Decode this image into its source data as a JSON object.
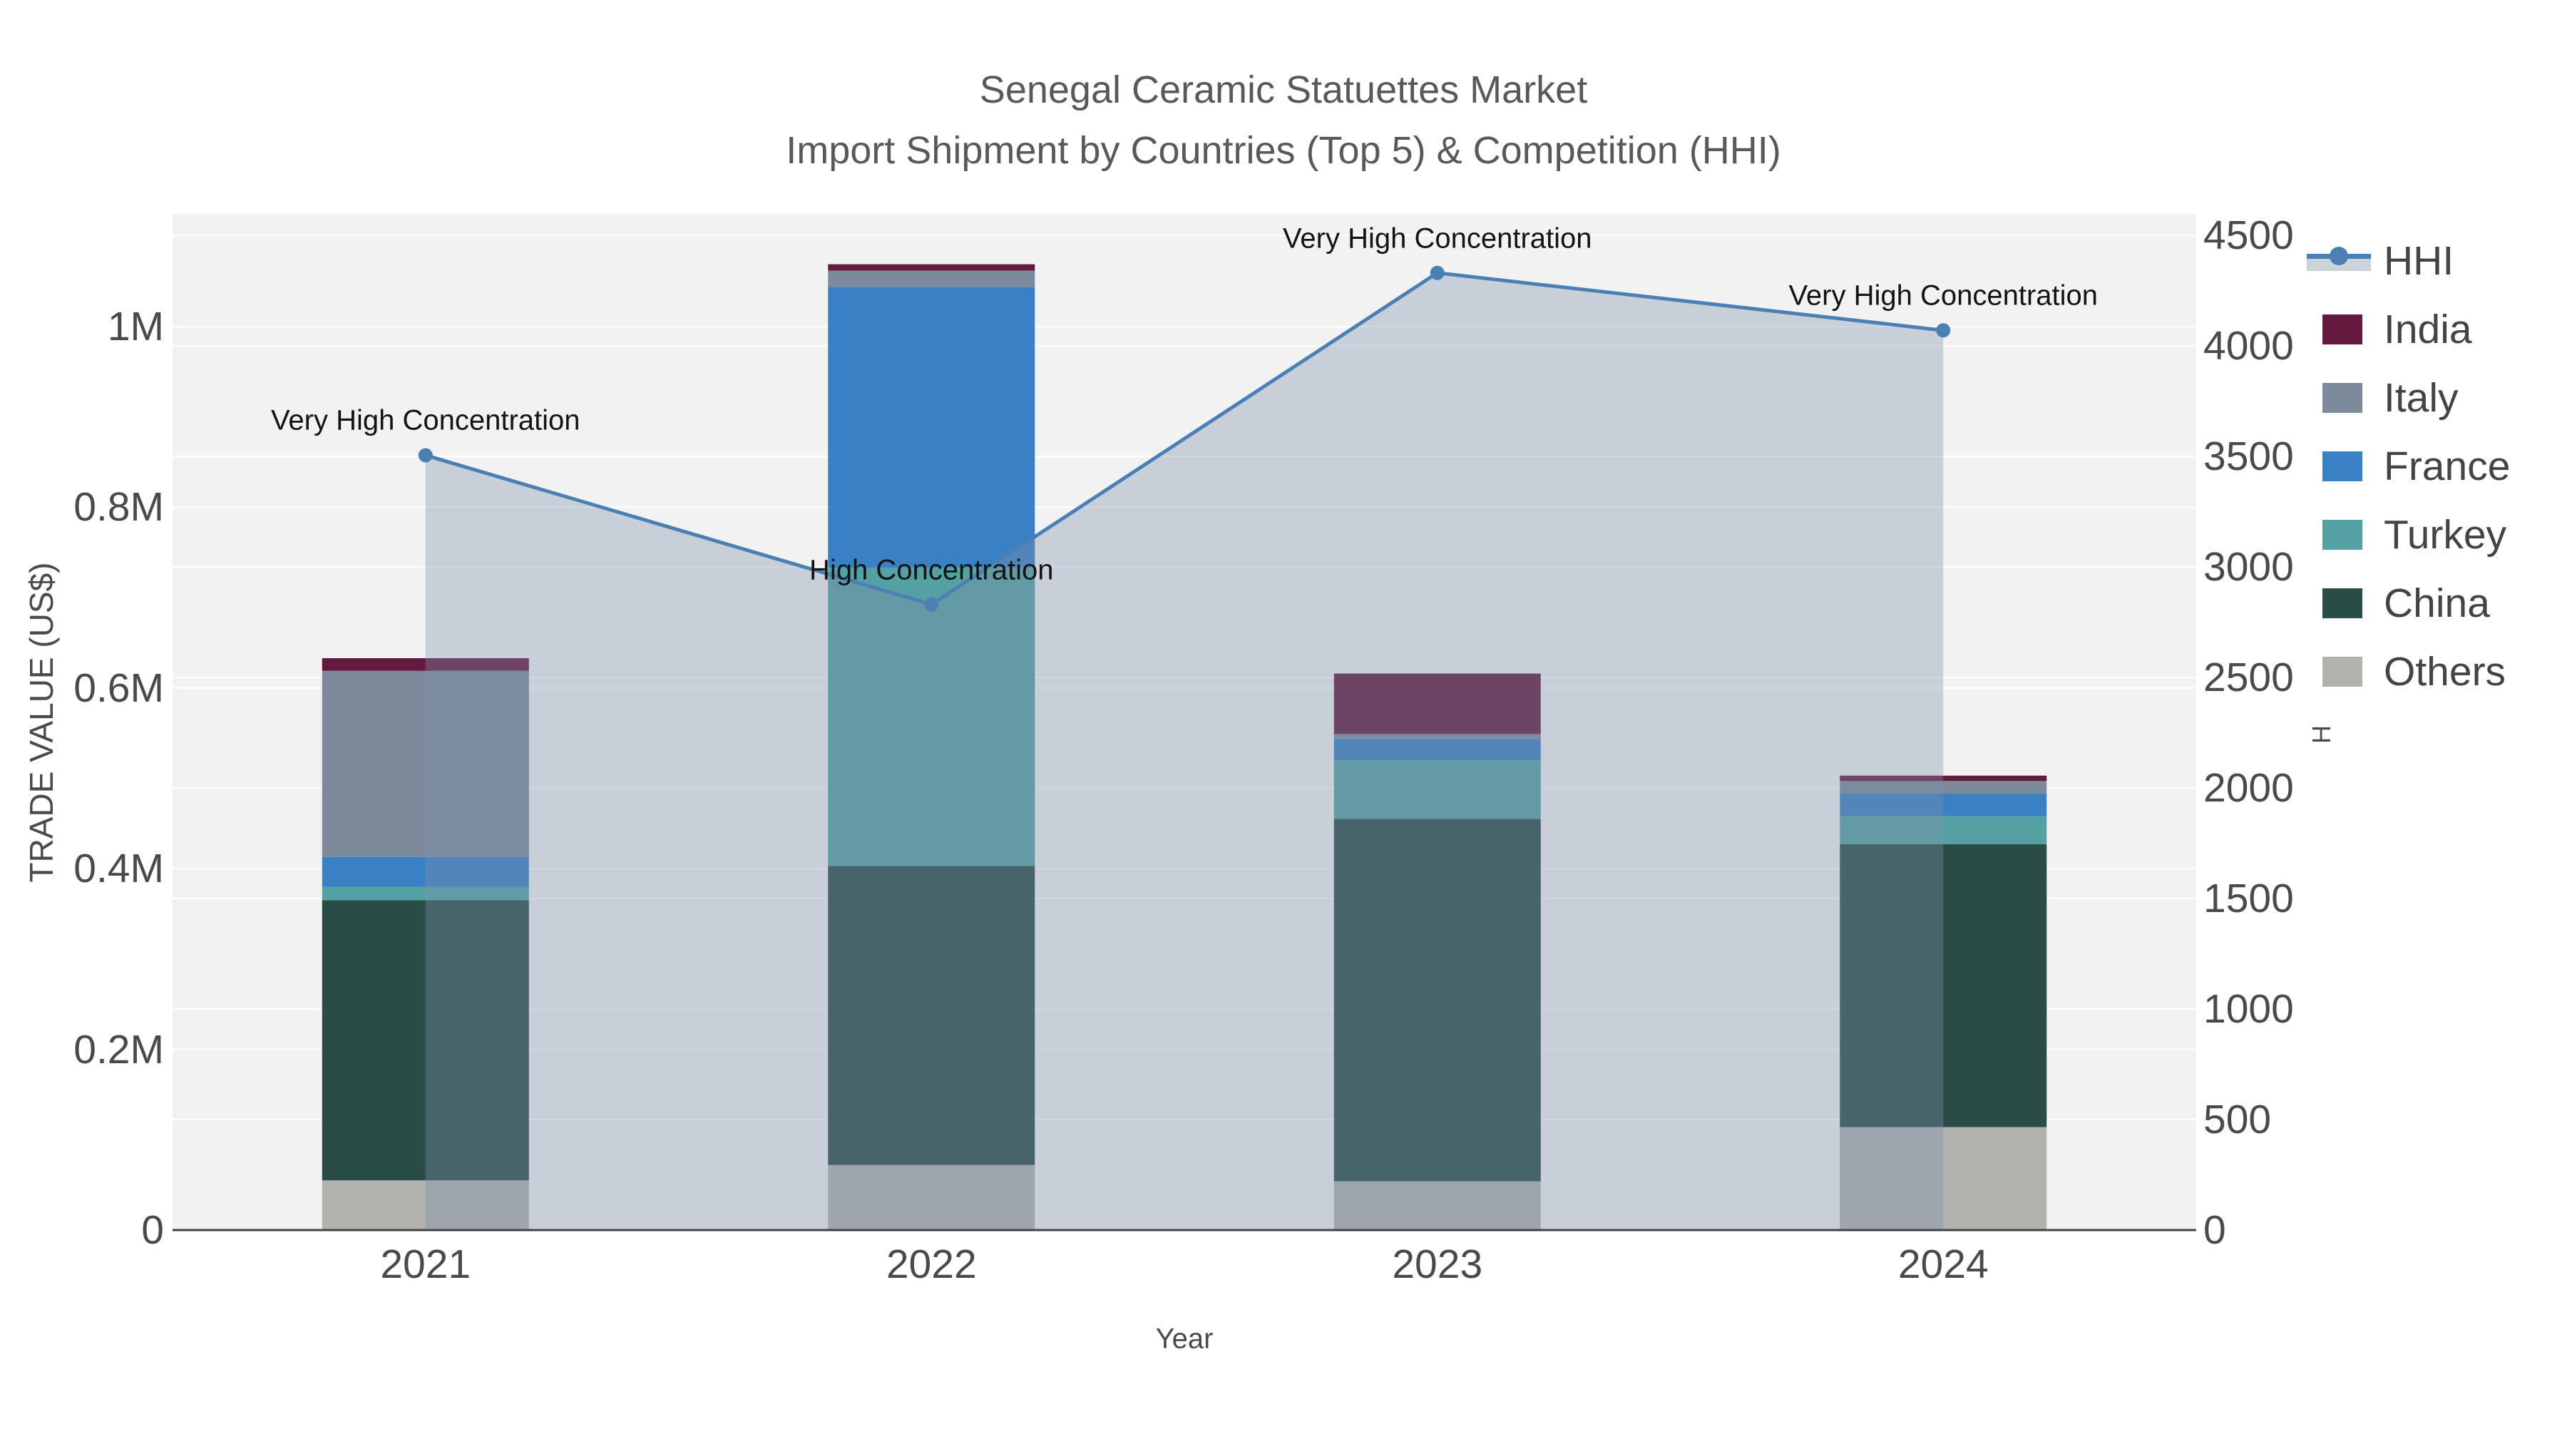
{
  "title": {
    "line1": "Senegal Ceramic Statuettes Market",
    "line2": "Import Shipment by Countries (Top 5) & Competition (HHI)"
  },
  "axes": {
    "x": {
      "title": "Year",
      "categories": [
        "2021",
        "2022",
        "2023",
        "2024"
      ]
    },
    "y_left": {
      "title": "TRADE VALUE (US$)",
      "ticks": [
        {
          "label": "0",
          "value": 0
        },
        {
          "label": "0.2M",
          "value": 200000
        },
        {
          "label": "0.4M",
          "value": 400000
        },
        {
          "label": "0.6M",
          "value": 600000
        },
        {
          "label": "0.8M",
          "value": 800000
        },
        {
          "label": "1M",
          "value": 1000000
        }
      ]
    },
    "y_right": {
      "title": "HHI",
      "ticks": [
        {
          "label": "0",
          "value": 0
        },
        {
          "label": "500",
          "value": 500
        },
        {
          "label": "1000",
          "value": 1000
        },
        {
          "label": "1500",
          "value": 1500
        },
        {
          "label": "2000",
          "value": 2000
        },
        {
          "label": "2500",
          "value": 2500
        },
        {
          "label": "3000",
          "value": 3000
        },
        {
          "label": "3500",
          "value": 3500
        },
        {
          "label": "4000",
          "value": 4000
        },
        {
          "label": "4500",
          "value": 4500
        }
      ]
    }
  },
  "chart_data": {
    "type": "bar+line",
    "title": "Senegal Ceramic Statuettes Market — Import Shipment by Countries (Top 5) & Competition (HHI)",
    "categories": [
      "2021",
      "2022",
      "2023",
      "2024"
    ],
    "bar_value_unit": "US$",
    "stack_order_bottom_to_top": [
      "Others",
      "China",
      "Turkey",
      "France",
      "Italy",
      "India"
    ],
    "series": [
      {
        "name": "Others",
        "color": "#b1b1ae",
        "values": [
          55000,
          72000,
          54000,
          114000
        ]
      },
      {
        "name": "China",
        "color": "#2a4c47",
        "values": [
          310000,
          331000,
          401000,
          313000
        ]
      },
      {
        "name": "Turkey",
        "color": "#55a0a3",
        "values": [
          15000,
          330000,
          65000,
          31000
        ]
      },
      {
        "name": "France",
        "color": "#3a80c4",
        "values": [
          33000,
          311000,
          24000,
          25000
        ]
      },
      {
        "name": "Italy",
        "color": "#7c8a9b",
        "values": [
          206000,
          18000,
          5000,
          14000
        ]
      },
      {
        "name": "India",
        "color": "#64193e",
        "values": [
          14000,
          7000,
          67000,
          6000
        ]
      }
    ],
    "bar_totals": [
      633000,
      1069000,
      616000,
      503000
    ],
    "line_series": {
      "name": "HHI",
      "axis": "right",
      "values": [
        3505,
        2830,
        4330,
        4070
      ],
      "marker": "circle",
      "area_fill": true
    },
    "annotations": [
      {
        "x_index": 0,
        "text": "Very High Concentration"
      },
      {
        "x_index": 1,
        "text": "High Concentration"
      },
      {
        "x_index": 2,
        "text": "Very High Concentration"
      },
      {
        "x_index": 3,
        "text": "Very High Concentration"
      }
    ],
    "y_left_range": [
      0,
      1125000
    ],
    "y_right_range": [
      0,
      4600
    ],
    "grid": true,
    "legend_position": "right"
  },
  "legend": {
    "items": [
      {
        "label": "HHI",
        "type": "line",
        "color": "#4a80b4"
      },
      {
        "label": "India",
        "type": "swatch",
        "color": "#64193e"
      },
      {
        "label": "Italy",
        "type": "swatch",
        "color": "#7c8a9b"
      },
      {
        "label": "France",
        "type": "swatch",
        "color": "#3a80c4"
      },
      {
        "label": "Turkey",
        "type": "swatch",
        "color": "#55a0a3"
      },
      {
        "label": "China",
        "type": "swatch",
        "color": "#2a4c47"
      },
      {
        "label": "Others",
        "type": "swatch",
        "color": "#b1b1ae"
      }
    ]
  },
  "colors": {
    "plot_background": "#f2f2f2",
    "gridline": "#ffffff",
    "axis_line": "#444444",
    "hhi_line": "#4a80b4",
    "hhi_fill": "rgba(125,143,170,0.36)",
    "hhi_band_solid": "#cdd3db",
    "tick_text": "#4a4a4a",
    "title_text": "#595959",
    "annotation_text": "#141414"
  }
}
